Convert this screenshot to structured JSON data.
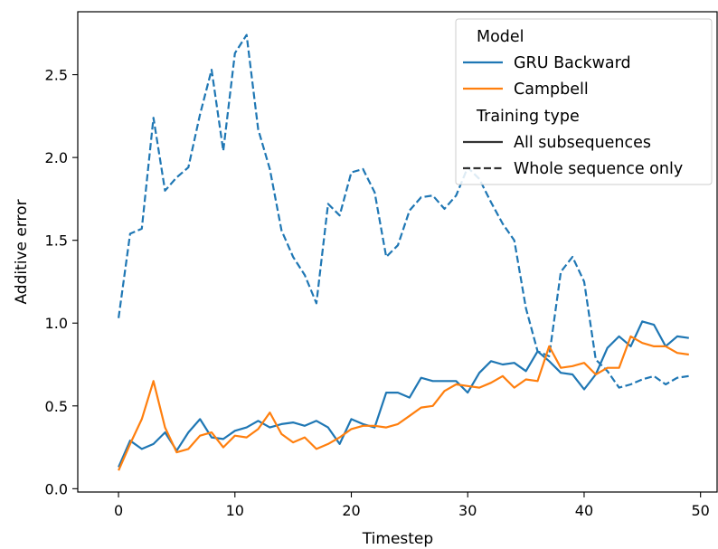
{
  "chart_data": {
    "type": "line",
    "xlabel": "Timestep",
    "ylabel": "Additive error",
    "xlim": [
      -3.5,
      51.5
    ],
    "ylim": [
      -0.02,
      2.88
    ],
    "xticks": [
      0,
      10,
      20,
      30,
      40,
      50
    ],
    "yticks": [
      0.0,
      0.5,
      1.0,
      1.5,
      2.0,
      2.5
    ],
    "ytick_labels": [
      "0.0",
      "0.5",
      "1.0",
      "1.5",
      "2.0",
      "2.5"
    ],
    "grid": false,
    "legend": {
      "placement": "top-right",
      "model_title": "Model",
      "training_title": "Training type",
      "model_entries": [
        {
          "label": "GRU Backward",
          "color": "#1f77b4"
        },
        {
          "label": "Campbell",
          "color": "#ff7f0e"
        }
      ],
      "training_entries": [
        {
          "label": "All subsequences",
          "style": "solid"
        },
        {
          "label": "Whole sequence only",
          "style": "dashed"
        }
      ]
    },
    "x": [
      0,
      1,
      2,
      3,
      4,
      5,
      6,
      7,
      8,
      9,
      10,
      11,
      12,
      13,
      14,
      15,
      16,
      17,
      18,
      19,
      20,
      21,
      22,
      23,
      24,
      25,
      26,
      27,
      28,
      29,
      30,
      31,
      32,
      33,
      34,
      35,
      36,
      37,
      38,
      39,
      40,
      41,
      42,
      43,
      44,
      45,
      46,
      47,
      48,
      49
    ],
    "series": [
      {
        "model": "GRU Backward",
        "training": "Whole sequence only",
        "color": "#1f77b4",
        "dash": "dashed",
        "values": [
          1.03,
          1.54,
          1.57,
          2.24,
          1.8,
          1.88,
          1.94,
          2.26,
          2.53,
          2.04,
          2.63,
          2.74,
          2.17,
          1.93,
          1.56,
          1.4,
          1.29,
          1.12,
          1.72,
          1.65,
          1.91,
          1.93,
          1.79,
          1.4,
          1.47,
          1.68,
          1.76,
          1.77,
          1.69,
          1.77,
          1.94,
          1.87,
          1.73,
          1.6,
          1.5,
          1.09,
          0.83,
          0.8,
          1.31,
          1.4,
          1.25,
          0.78,
          0.71,
          0.61,
          0.63,
          0.66,
          0.68,
          0.63,
          0.67,
          0.68
        ]
      },
      {
        "model": "GRU Backward",
        "training": "All subsequences",
        "color": "#1f77b4",
        "dash": "solid",
        "values": [
          0.13,
          0.29,
          0.24,
          0.27,
          0.34,
          0.23,
          0.34,
          0.42,
          0.31,
          0.3,
          0.35,
          0.37,
          0.41,
          0.37,
          0.39,
          0.4,
          0.38,
          0.41,
          0.37,
          0.27,
          0.42,
          0.39,
          0.37,
          0.58,
          0.58,
          0.55,
          0.67,
          0.65,
          0.65,
          0.65,
          0.58,
          0.7,
          0.77,
          0.75,
          0.76,
          0.71,
          0.83,
          0.77,
          0.7,
          0.69,
          0.6,
          0.69,
          0.85,
          0.92,
          0.86,
          1.01,
          0.99,
          0.86,
          0.92,
          0.91
        ]
      },
      {
        "model": "Campbell",
        "training": "All subsequences",
        "color": "#ff7f0e",
        "dash": "solid",
        "values": [
          0.11,
          0.27,
          0.42,
          0.65,
          0.37,
          0.22,
          0.24,
          0.32,
          0.34,
          0.25,
          0.32,
          0.31,
          0.36,
          0.46,
          0.33,
          0.28,
          0.31,
          0.24,
          0.27,
          0.31,
          0.36,
          0.38,
          0.38,
          0.37,
          0.39,
          0.44,
          0.49,
          0.5,
          0.59,
          0.63,
          0.62,
          0.61,
          0.64,
          0.68,
          0.61,
          0.66,
          0.65,
          0.86,
          0.73,
          0.74,
          0.76,
          0.69,
          0.73,
          0.73,
          0.92,
          0.88,
          0.86,
          0.86,
          0.82,
          0.81
        ]
      }
    ]
  }
}
